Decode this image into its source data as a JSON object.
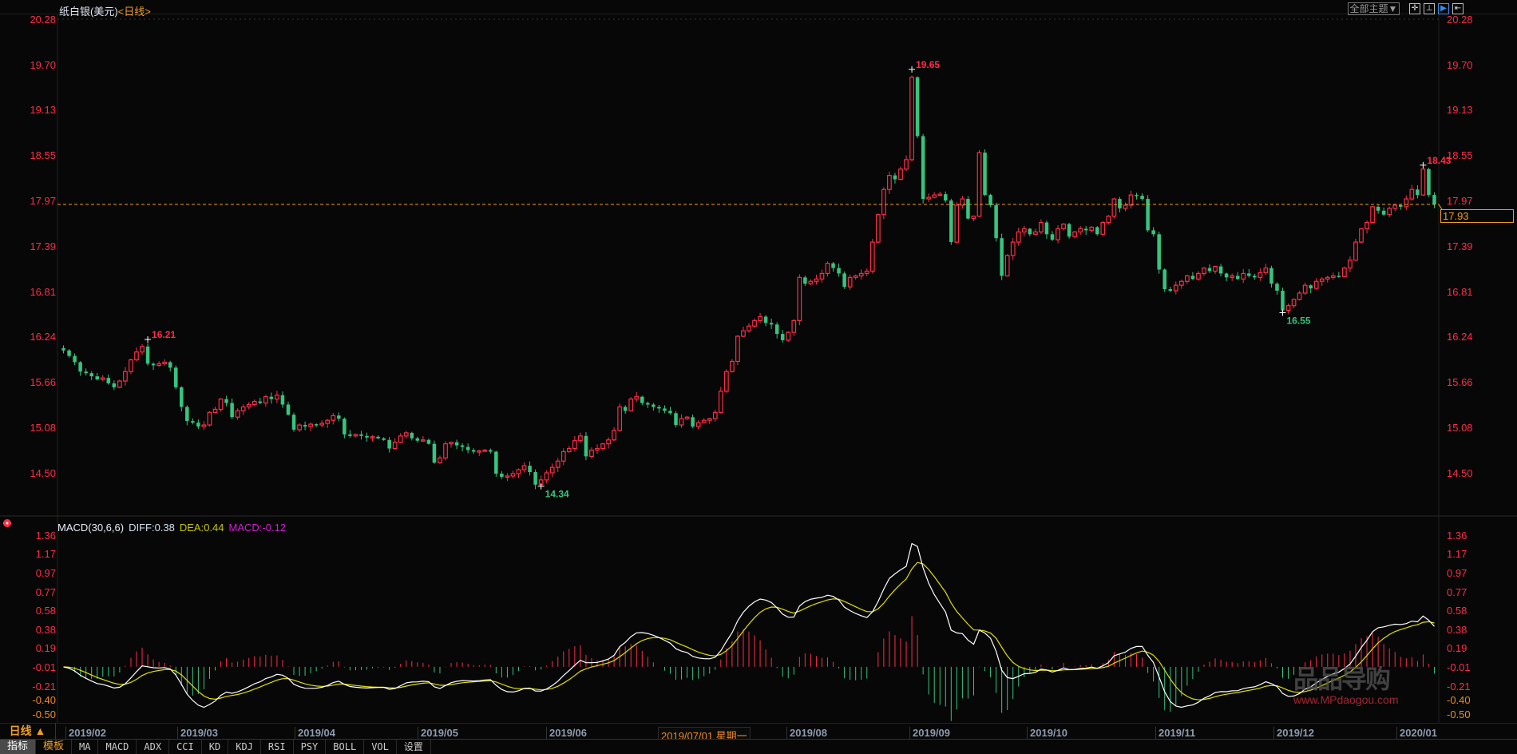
{
  "header": {
    "instrument": "纸白银(美元)",
    "period_tag": "<日线>",
    "theme_button": "全部主题▼",
    "toolbar_icons": [
      "crosshair-icon",
      "interval-icon",
      "play-icon",
      "move-to-end-icon"
    ]
  },
  "colors": {
    "up": "#ff2d45",
    "down": "#35c57f",
    "diff": "#ffffff",
    "dea": "#e0e000",
    "macd_label": "#d020d0",
    "current_price": "#f0a020"
  },
  "price_axis": {
    "labels": [
      "20.28",
      "19.70",
      "19.13",
      "18.55",
      "17.97",
      "17.39",
      "16.81",
      "16.24",
      "15.66",
      "15.08",
      "14.50"
    ],
    "current_price": "17.93"
  },
  "macd": {
    "title": "MACD(30,6,6)",
    "diff": "DIFF:0.38",
    "dea": "DEA:0.44",
    "macd": "MACD:-0.12",
    "axis_labels": [
      "1.36",
      "1.17",
      "0.97",
      "0.77",
      "0.58",
      "0.38",
      "0.19",
      "-0.01",
      "-0.21",
      "-0.40",
      "-0.50"
    ]
  },
  "date_axis": {
    "labels": [
      "2019/02",
      "2019/03",
      "2019/04",
      "2019/05",
      "2019/06",
      "2019/07/01 星期一",
      "2019/08",
      "2019/09",
      "2019/10",
      "2019/11",
      "2019/12",
      "2020/01"
    ]
  },
  "period_button": "日线 ▲",
  "tabs": [
    "指标",
    "模板",
    "MA",
    "MACD",
    "ADX",
    "CCI",
    "KD",
    "KDJ",
    "RSI",
    "PSY",
    "BOLL",
    "VOL",
    "设置"
  ],
  "watermark": {
    "logo": "品导购",
    "url": "www.MPdaogou.com"
  },
  "chart_data": {
    "type": "candlestick",
    "ylim": [
      14.5,
      20.28
    ],
    "annotations": [
      {
        "text": "16.21",
        "kind": "high"
      },
      {
        "text": "14.34",
        "kind": "low"
      },
      {
        "text": "19.65",
        "kind": "high"
      },
      {
        "text": "16.55",
        "kind": "low"
      },
      {
        "text": "18.43",
        "kind": "high"
      }
    ],
    "closes": [
      16.07,
      16.0,
      15.92,
      15.8,
      15.78,
      15.74,
      15.7,
      15.72,
      15.65,
      15.6,
      15.68,
      15.8,
      15.95,
      16.05,
      16.12,
      15.9,
      15.88,
      15.9,
      15.92,
      15.85,
      15.6,
      15.35,
      15.17,
      15.15,
      15.1,
      15.12,
      15.28,
      15.32,
      15.45,
      15.4,
      15.22,
      15.3,
      15.35,
      15.38,
      15.42,
      15.4,
      15.48,
      15.45,
      15.5,
      15.38,
      15.25,
      15.06,
      15.12,
      15.1,
      15.13,
      15.12,
      15.14,
      15.18,
      15.24,
      15.2,
      15.0,
      14.98,
      15.0,
      14.98,
      14.96,
      14.97,
      14.95,
      14.93,
      14.82,
      14.9,
      14.98,
      15.02,
      14.95,
      14.92,
      14.93,
      14.88,
      14.64,
      14.7,
      14.88,
      14.9,
      14.86,
      14.84,
      14.8,
      14.78,
      14.79,
      14.8,
      14.78,
      14.5,
      14.46,
      14.47,
      14.5,
      14.55,
      14.6,
      14.52,
      14.36,
      14.42,
      14.51,
      14.58,
      14.66,
      14.78,
      14.82,
      14.92,
      14.98,
      14.72,
      14.8,
      14.82,
      14.88,
      14.93,
      15.05,
      15.35,
      15.3,
      15.45,
      15.48,
      15.4,
      15.38,
      15.35,
      15.33,
      15.3,
      15.27,
      15.12,
      15.2,
      15.22,
      15.1,
      15.15,
      15.18,
      15.2,
      15.28,
      15.55,
      15.8,
      15.93,
      16.25,
      16.32,
      16.38,
      16.45,
      16.5,
      16.42,
      16.4,
      16.28,
      16.2,
      16.3,
      16.45,
      17.0,
      16.92,
      16.95,
      16.98,
      17.05,
      17.18,
      17.12,
      17.05,
      16.88,
      17.0,
      17.02,
      17.05,
      17.08,
      17.45,
      17.8,
      18.12,
      18.3,
      18.25,
      18.38,
      18.5,
      19.55,
      18.8,
      18.0,
      18.02,
      18.05,
      18.06,
      17.98,
      17.45,
      17.92,
      18.0,
      17.75,
      17.78,
      18.59,
      18.05,
      17.92,
      17.5,
      17.02,
      17.28,
      17.45,
      17.58,
      17.62,
      17.55,
      17.58,
      17.7,
      17.55,
      17.48,
      17.62,
      17.68,
      17.52,
      17.58,
      17.62,
      17.6,
      17.64,
      17.55,
      17.7,
      17.78,
      18.0,
      17.88,
      17.92,
      18.05,
      18.04,
      18.0,
      17.6,
      17.55,
      17.1,
      16.85,
      16.83,
      16.9,
      16.95,
      17.02,
      16.98,
      17.05,
      17.12,
      17.08,
      17.14,
      17.05,
      17.0,
      17.02,
      16.98,
      17.05,
      17.02,
      17.0,
      17.06,
      17.12,
      16.92,
      16.83,
      16.58,
      16.64,
      16.72,
      16.8,
      16.9,
      16.86,
      16.95,
      16.98,
      17.0,
      17.02,
      17.01,
      17.12,
      17.22,
      17.45,
      17.62,
      17.7,
      17.9,
      17.85,
      17.8,
      17.88,
      17.92,
      17.9,
      18.0,
      18.12,
      18.05,
      18.38,
      18.05,
      17.93
    ]
  }
}
